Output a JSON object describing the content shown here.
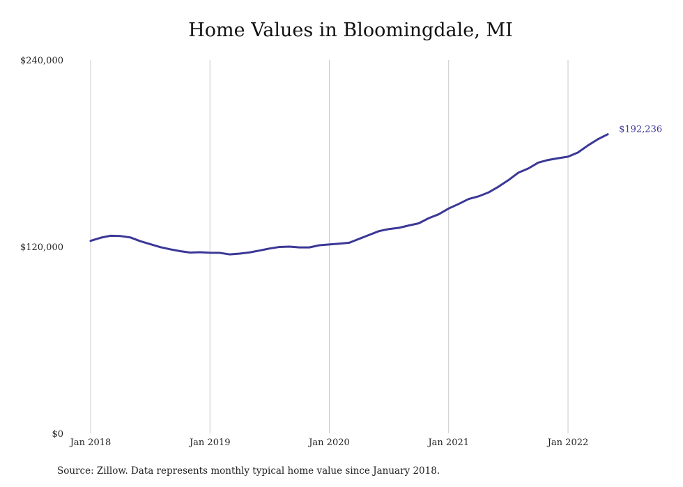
{
  "chart_data": {
    "type": "line",
    "title": "Home Values in Bloomingdale, MI",
    "xlabel": "",
    "ylabel": "",
    "ylim": [
      0,
      240000
    ],
    "yticks": [
      {
        "value": 0,
        "label": "$0"
      },
      {
        "value": 120000,
        "label": "$120,000"
      },
      {
        "value": 240000,
        "label": "$240,000"
      }
    ],
    "xticks": [
      {
        "value": 0,
        "label": "Jan 2018"
      },
      {
        "value": 12,
        "label": "Jan 2019"
      },
      {
        "value": 24,
        "label": "Jan 2020"
      },
      {
        "value": 36,
        "label": "Jan 2021"
      },
      {
        "value": 48,
        "label": "Jan 2022"
      }
    ],
    "grid": "vertical",
    "series": [
      {
        "color": "#3b3897",
        "x": [
          "2018-01",
          "2018-02",
          "2018-03",
          "2018-04",
          "2018-05",
          "2018-06",
          "2018-07",
          "2018-08",
          "2018-09",
          "2018-10",
          "2018-11",
          "2018-12",
          "2019-01",
          "2019-02",
          "2019-03",
          "2019-04",
          "2019-05",
          "2019-06",
          "2019-07",
          "2019-08",
          "2019-09",
          "2019-10",
          "2019-11",
          "2019-12",
          "2020-01",
          "2020-02",
          "2020-03",
          "2020-04",
          "2020-05",
          "2020-06",
          "2020-07",
          "2020-08",
          "2020-09",
          "2020-10",
          "2020-11",
          "2020-12",
          "2021-01",
          "2021-02",
          "2021-03",
          "2021-04",
          "2021-05",
          "2021-06",
          "2021-07",
          "2021-08",
          "2021-09",
          "2021-10",
          "2021-11",
          "2021-12",
          "2022-01",
          "2022-02",
          "2022-03",
          "2022-04",
          "2022-05"
        ],
        "values": [
          123700,
          125700,
          127000,
          126800,
          125900,
          123500,
          121600,
          119700,
          118300,
          117100,
          116200,
          116400,
          116100,
          116000,
          115000,
          115500,
          116300,
          117500,
          118800,
          119800,
          120000,
          119500,
          119500,
          120900,
          121400,
          121900,
          122500,
          125000,
          127500,
          130000,
          131300,
          132100,
          133600,
          135000,
          138300,
          140800,
          144500,
          147400,
          150600,
          152300,
          154800,
          158500,
          162700,
          167500,
          170200,
          174000,
          175700,
          176800,
          177800,
          180500,
          185000,
          189000,
          192236
        ]
      }
    ],
    "end_label": "$192,236"
  },
  "source_note": "Source: Zillow. Data represents monthly typical home value since January 2018."
}
